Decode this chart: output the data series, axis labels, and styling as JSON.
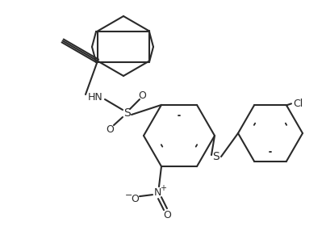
{
  "background": "#ffffff",
  "line_color": "#2a2a2a",
  "lw": 1.5,
  "figsize": [
    4.04,
    2.91
  ],
  "dpi": 100,
  "xlim": [
    0,
    404
  ],
  "ylim": [
    0,
    291
  ]
}
